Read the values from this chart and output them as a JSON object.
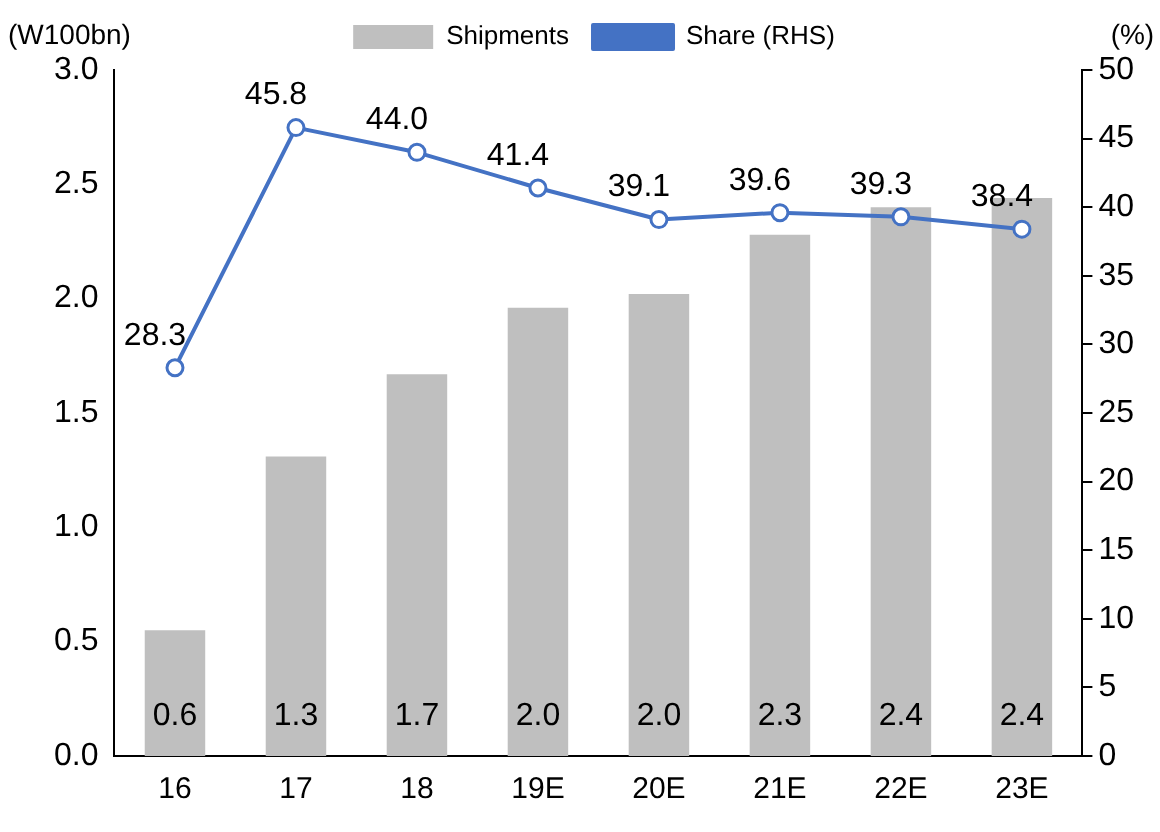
{
  "chart_data": {
    "type": "bar",
    "categories": [
      "16",
      "17",
      "18",
      "19E",
      "20E",
      "21E",
      "22E",
      "23E"
    ],
    "ylabel": "(W100bn)",
    "y2label": "(%)",
    "series": [
      {
        "name": "Shipments",
        "color": "#bfbfbf",
        "values": [
          0.55,
          1.31,
          1.67,
          1.96,
          2.02,
          2.28,
          2.4,
          2.44
        ],
        "value_labels": [
          "0.6",
          "1.3",
          "1.7",
          "2.0",
          "2.0",
          "2.3",
          "2.4",
          "2.4"
        ]
      },
      {
        "name": "Share (RHS)",
        "type": "line",
        "axis": "y2",
        "color": "#4472c4",
        "marker": "circle",
        "values": [
          28.3,
          45.8,
          44.0,
          41.4,
          39.1,
          39.6,
          39.3,
          38.4
        ],
        "value_labels": [
          "28.3",
          "45.8",
          "44.0",
          "41.4",
          "39.1",
          "39.6",
          "39.3",
          "38.4"
        ]
      }
    ],
    "ylim": [
      0,
      3
    ],
    "yticks": [
      {
        "value": 0,
        "label": "0.0"
      },
      {
        "value": 0.5,
        "label": "0.5"
      },
      {
        "value": 1,
        "label": "1.0"
      },
      {
        "value": 1.5,
        "label": "1.5"
      },
      {
        "value": 2,
        "label": "2.0"
      },
      {
        "value": 2.5,
        "label": "2.5"
      },
      {
        "value": 3,
        "label": "3.0"
      }
    ],
    "y2lim": [
      0,
      50
    ],
    "y2ticks": [
      0,
      5,
      10,
      15,
      20,
      25,
      30,
      35,
      40,
      45,
      50
    ],
    "grid": false,
    "legend": "top"
  }
}
